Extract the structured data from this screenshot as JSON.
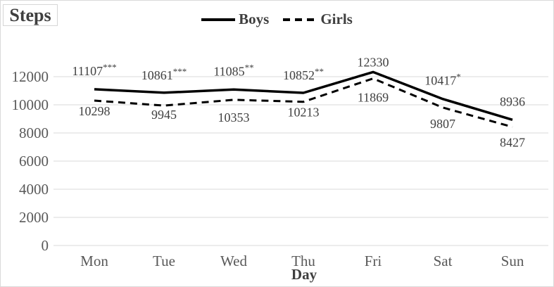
{
  "chart_data": {
    "type": "line",
    "title": "",
    "ylabel": "Steps",
    "xlabel": "Day",
    "categories": [
      "Mon",
      "Tue",
      "Wed",
      "Thu",
      "Fri",
      "Sat",
      "Sun"
    ],
    "series": [
      {
        "name": "Boys",
        "style": "solid",
        "values": [
          11107,
          10861,
          11085,
          10852,
          12330,
          10417,
          8936
        ],
        "stars": [
          "***",
          "***",
          "**",
          "**",
          "",
          "*",
          ""
        ],
        "label_position": "above",
        "label_dy": [
          -26,
          -25,
          -26,
          -25,
          -14,
          -26,
          -26
        ]
      },
      {
        "name": "Girls",
        "style": "dashed",
        "values": [
          10298,
          9945,
          10353,
          10213,
          11869,
          9807,
          8427
        ],
        "stars": [
          "",
          "",
          "",
          "",
          "",
          "",
          ""
        ],
        "label_position": "below",
        "label_dy": [
          15,
          13,
          25,
          15,
          27,
          23,
          22
        ]
      }
    ],
    "y_ticks": [
      0,
      2000,
      4000,
      6000,
      8000,
      10000,
      12000
    ],
    "ylim": [
      0,
      12600
    ],
    "grid": "horizontal",
    "legend_position": "top-center",
    "colors": {
      "line": "#000000",
      "grid": "#d9d9d9",
      "axis_text": "#595959",
      "label_text": "#404040",
      "title_text": "#3f3f3f"
    }
  }
}
